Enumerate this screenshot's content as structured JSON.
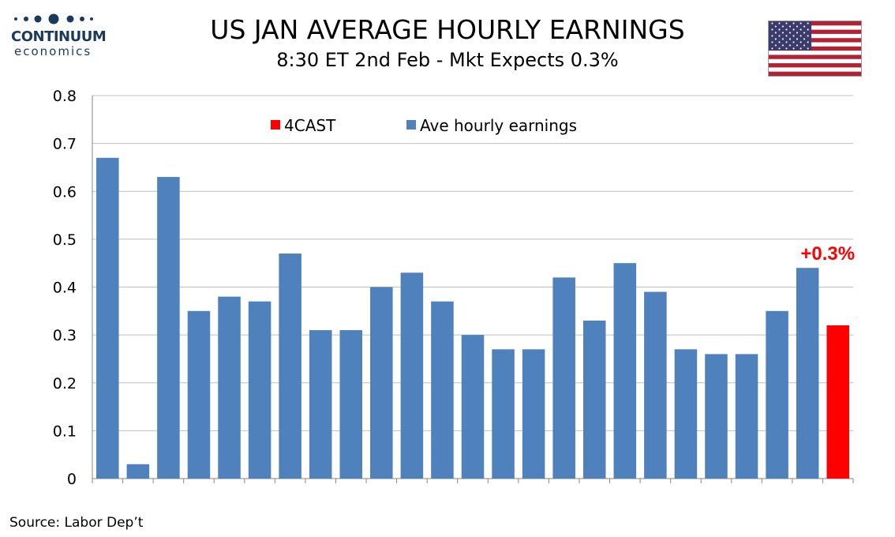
{
  "header": {
    "title": "US JAN AVERAGE HOURLY EARNINGS",
    "subtitle": "8:30 ET 2nd Feb - Mkt Expects 0.3%"
  },
  "logo": {
    "name": "CONTINUUM",
    "sub": "economics"
  },
  "source": "Source: Labor Dep’t",
  "colors": {
    "series": "#4f81bd",
    "forecast": "#ff0000",
    "grid": "#bfbfbf",
    "logo": "#1a3a5c"
  },
  "chart_data": {
    "type": "bar",
    "ylim": [
      0,
      0.8
    ],
    "yticks": [
      "0",
      "0.1",
      "0.2",
      "0.3",
      "0.4",
      "0.5",
      "0.6",
      "0.7",
      "0.8"
    ],
    "grid": true,
    "legend_position": "top",
    "series": [
      {
        "name": "4CAST",
        "color": "#ff0000",
        "values": [
          null,
          null,
          null,
          null,
          null,
          null,
          null,
          null,
          null,
          null,
          null,
          null,
          null,
          null,
          null,
          null,
          null,
          null,
          null,
          null,
          null,
          null,
          null,
          null,
          0.32
        ]
      },
      {
        "name": "Ave hourly earnings",
        "color": "#4f81bd",
        "values": [
          0.67,
          0.03,
          0.63,
          0.35,
          0.38,
          0.37,
          0.47,
          0.31,
          0.31,
          0.4,
          0.43,
          0.37,
          0.3,
          0.27,
          0.27,
          0.42,
          0.33,
          0.45,
          0.39,
          0.27,
          0.26,
          0.26,
          0.35,
          0.44,
          null
        ]
      }
    ],
    "annotation": "+0.3%"
  }
}
